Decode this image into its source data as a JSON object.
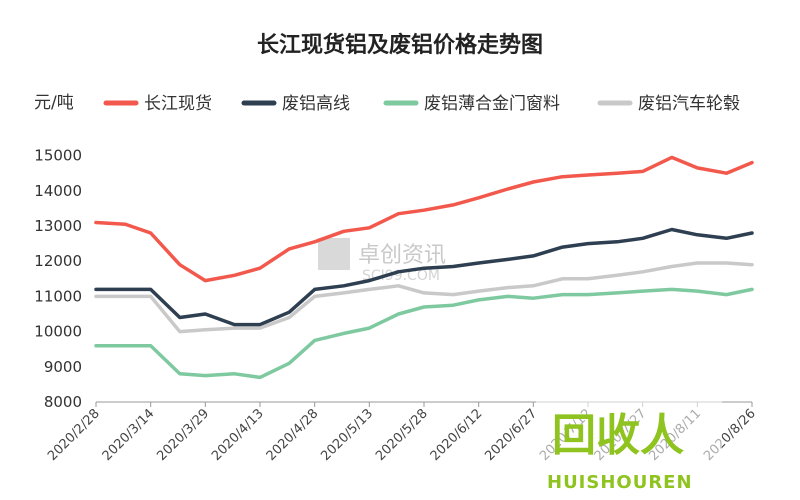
{
  "chart_data": {
    "type": "line",
    "title": "长江现货铝及废铝价格走势图",
    "ylabel": "元/吨",
    "ylim": [
      8000,
      15500
    ],
    "yticks": [
      8000,
      9000,
      10000,
      11000,
      12000,
      13000,
      14000,
      15000
    ],
    "x_dates": [
      "2020/2/28",
      "2020/3/7",
      "2020/3/14",
      "2020/3/22",
      "2020/3/29",
      "2020/4/6",
      "2020/4/13",
      "2020/4/21",
      "2020/4/28",
      "2020/5/6",
      "2020/5/13",
      "2020/5/21",
      "2020/5/28",
      "2020/6/5",
      "2020/6/12",
      "2020/6/20",
      "2020/6/27",
      "2020/7/5",
      "2020/7/12",
      "2020/7/20",
      "2020/7/27",
      "2020/8/4",
      "2020/8/11",
      "2020/8/19",
      "2020/8/26"
    ],
    "xticks": [
      "2020/2/28",
      "2020/3/14",
      "2020/3/29",
      "2020/4/13",
      "2020/4/28",
      "2020/5/13",
      "2020/5/28",
      "2020/6/12",
      "2020/6/27",
      "2020/7/12",
      "2020/7/27",
      "2020/8/11",
      "2020/8/26"
    ],
    "legend_position": "top",
    "series": [
      {
        "name": "长江现货",
        "color": "#f2584b",
        "values": [
          13100,
          13050,
          12800,
          11900,
          11450,
          11600,
          11800,
          12350,
          12550,
          12850,
          12950,
          13350,
          13450,
          13600,
          13800,
          14050,
          14250,
          14400,
          14450,
          14500,
          14550,
          14950,
          14650,
          14500,
          14800
        ]
      },
      {
        "name": "废铝高线",
        "color": "#2e3f51",
        "values": [
          11200,
          11200,
          11200,
          10400,
          10500,
          10200,
          10200,
          10550,
          11200,
          11300,
          11450,
          11700,
          11800,
          11850,
          11950,
          12050,
          12150,
          12400,
          12500,
          12550,
          12650,
          12900,
          12750,
          12650,
          12800
        ]
      },
      {
        "name": "废铝薄合金门窗料",
        "color": "#7ec9a0",
        "values": [
          9600,
          9600,
          9600,
          8800,
          8750,
          8800,
          8700,
          9100,
          9750,
          9950,
          10100,
          10500,
          10700,
          10750,
          10900,
          11000,
          10950,
          11050,
          11050,
          11100,
          11150,
          11200,
          11150,
          11050,
          11200
        ]
      },
      {
        "name": "废铝汽车轮毂",
        "color": "#c9c9c9",
        "values": [
          11000,
          11000,
          11000,
          10000,
          10050,
          10100,
          10100,
          10400,
          11000,
          11100,
          11200,
          11300,
          11100,
          11050,
          11150,
          11250,
          11300,
          11500,
          11500,
          11600,
          11700,
          11850,
          11950,
          11950,
          11900
        ]
      }
    ]
  },
  "watermark": {
    "text": "卓创资讯",
    "sub": "SCI99.COM"
  },
  "logo": {
    "text": "回收人",
    "sub": "HUISHOUREN"
  }
}
